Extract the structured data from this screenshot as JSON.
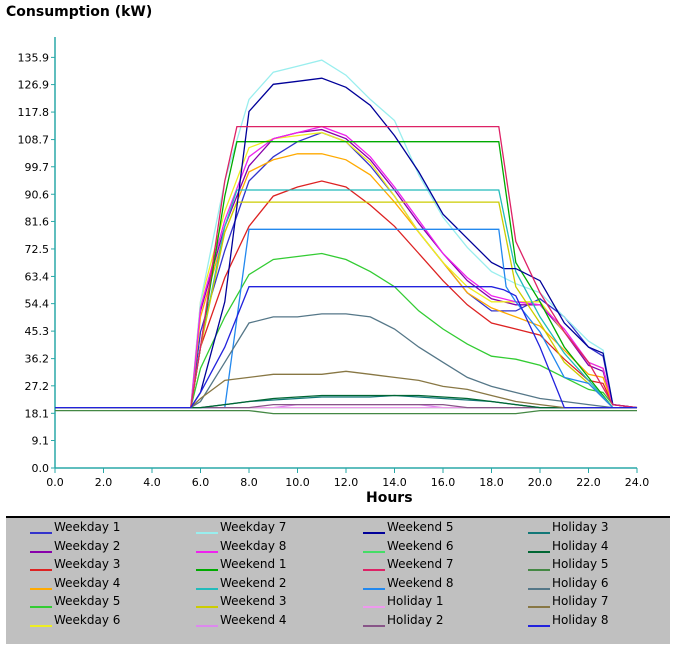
{
  "chart_data": {
    "type": "line",
    "title": "",
    "ylabel": "Consumption (kW)",
    "xlabel": "Hours",
    "xlim": [
      0,
      24
    ],
    "ylim": [
      0,
      140
    ],
    "x_ticks": [
      "0.0",
      "2.0",
      "4.0",
      "6.0",
      "8.0",
      "10.0",
      "12.0",
      "14.0",
      "16.0",
      "18.0",
      "20.0",
      "22.0",
      "24.0"
    ],
    "y_ticks": [
      "0.0",
      "9.1",
      "18.1",
      "27.2",
      "36.2",
      "45.3",
      "54.4",
      "63.4",
      "72.5",
      "81.6",
      "90.6",
      "99.7",
      "108.7",
      "117.8",
      "126.9",
      "135.9"
    ],
    "grid": false,
    "legend_position": "bottom",
    "series": [
      {
        "name": "Weekday 1",
        "color": "#3333cc",
        "x": [
          0,
          5.6,
          6,
          7,
          8,
          9,
          10,
          11,
          12,
          13,
          14,
          15,
          16,
          17,
          18,
          19,
          20,
          21,
          22,
          22.6,
          23,
          24
        ],
        "y": [
          20,
          20,
          45,
          72,
          95,
          103,
          108,
          111,
          108,
          100,
          90,
          78,
          68,
          58,
          52,
          52,
          56,
          50,
          40,
          37,
          21,
          20
        ]
      },
      {
        "name": "Weekday 2",
        "color": "#8800aa",
        "x": [
          0,
          5.6,
          6,
          7,
          8,
          9,
          10,
          11,
          12,
          13,
          14,
          15,
          16,
          17,
          18,
          19,
          20,
          21,
          22,
          22.6,
          23,
          24
        ],
        "y": [
          20,
          20,
          52,
          80,
          100,
          109,
          111,
          112,
          109,
          102,
          92,
          81,
          71,
          62,
          56,
          54,
          54,
          45,
          34,
          32,
          21,
          20
        ]
      },
      {
        "name": "Weekday 3",
        "color": "#dd2222",
        "x": [
          0,
          5.6,
          6,
          7,
          8,
          9,
          10,
          11,
          12,
          13,
          14,
          15,
          16,
          17,
          18,
          19,
          20,
          21,
          22,
          22.6,
          23,
          24
        ],
        "y": [
          20,
          20,
          40,
          63,
          80,
          90,
          93,
          95,
          93,
          87,
          80,
          71,
          62,
          54,
          48,
          46,
          44,
          36,
          29,
          28,
          21,
          20
        ]
      },
      {
        "name": "Weekday 4",
        "color": "#ffaa00",
        "x": [
          0,
          5.6,
          6,
          7,
          8,
          9,
          10,
          11,
          12,
          13,
          14,
          15,
          16,
          17,
          18,
          19,
          20,
          21,
          22,
          22.6,
          23,
          24
        ],
        "y": [
          20,
          20,
          50,
          78,
          98,
          102,
          104,
          104,
          102,
          97,
          88,
          78,
          68,
          58,
          53,
          50,
          47,
          39,
          31,
          30,
          21,
          20
        ]
      },
      {
        "name": "Weekday 5",
        "color": "#33cc33",
        "x": [
          0,
          5.6,
          6,
          7,
          8,
          9,
          10,
          11,
          12,
          13,
          14,
          15,
          16,
          17,
          18,
          19,
          20,
          21,
          22,
          22.6,
          23,
          24
        ],
        "y": [
          20,
          20,
          33,
          50,
          64,
          69,
          70,
          71,
          69,
          65,
          60,
          52,
          46,
          41,
          37,
          36,
          34,
          30,
          26,
          25,
          21,
          20
        ]
      },
      {
        "name": "Weekday 6",
        "color": "#eeee22",
        "x": [
          0,
          5.6,
          6,
          7,
          8,
          9,
          10,
          11,
          12,
          13,
          14,
          15,
          16,
          17,
          18,
          19,
          20,
          21,
          22,
          22.6,
          23,
          24
        ],
        "y": [
          20,
          20,
          55,
          85,
          106,
          109,
          110,
          111,
          108,
          101,
          90,
          78,
          68,
          60,
          55,
          55,
          55,
          45,
          35,
          33,
          21,
          20
        ]
      },
      {
        "name": "Weekday 7",
        "color": "#99eeee",
        "x": [
          0,
          5.6,
          6,
          7,
          8,
          9,
          10,
          11,
          12,
          13,
          14,
          15,
          16,
          17,
          18,
          19,
          20,
          21,
          22,
          22.6,
          23,
          24
        ],
        "y": [
          20,
          20,
          55,
          95,
          122,
          131,
          133,
          135,
          130,
          122,
          115,
          97,
          83,
          73,
          65,
          61,
          58,
          50,
          42,
          39,
          21,
          20
        ]
      },
      {
        "name": "Weekday 8",
        "color": "#ee22ee",
        "x": [
          0,
          5.6,
          6,
          7,
          8,
          9,
          10,
          11,
          12,
          13,
          14,
          15,
          16,
          17,
          18,
          19,
          20,
          21,
          22,
          22.6,
          23,
          24
        ],
        "y": [
          20,
          20,
          53,
          82,
          103,
          109,
          111,
          113,
          110,
          103,
          93,
          82,
          71,
          63,
          57,
          55,
          54,
          46,
          35,
          33,
          21,
          20
        ]
      },
      {
        "name": "Weekend 1",
        "color": "#00aa00",
        "x": [
          0,
          5.6,
          6,
          7,
          7.5,
          18.3,
          19,
          20,
          21,
          22,
          23,
          24
        ],
        "y": [
          20,
          20,
          40,
          90,
          108,
          108,
          68,
          55,
          40,
          30,
          20,
          20
        ]
      },
      {
        "name": "Weekend 2",
        "color": "#22bbbb",
        "x": [
          0,
          5.6,
          6,
          7,
          7.5,
          18.3,
          19,
          20,
          21,
          22,
          23,
          24
        ],
        "y": [
          20,
          20,
          40,
          80,
          92,
          92,
          65,
          50,
          38,
          29,
          20,
          20
        ]
      },
      {
        "name": "Weekend 3",
        "color": "#cccc00",
        "x": [
          0,
          5.6,
          6,
          7,
          7.5,
          18.3,
          19,
          20,
          21,
          22,
          23,
          24
        ],
        "y": [
          20,
          20,
          40,
          78,
          88,
          88,
          60,
          48,
          35,
          28,
          20,
          20
        ]
      },
      {
        "name": "Weekend 4",
        "color": "#dd88ee",
        "x": [
          0,
          5.6,
          6,
          7,
          8,
          9,
          10,
          11,
          12,
          13,
          14,
          15,
          16,
          17,
          18,
          19,
          20,
          21,
          22,
          23,
          24
        ],
        "y": [
          20,
          20,
          20,
          20,
          20,
          20,
          21,
          21,
          21,
          21,
          21,
          21,
          20,
          20,
          20,
          20,
          20,
          20,
          20,
          20,
          20
        ]
      },
      {
        "name": "Weekend 5",
        "color": "#000099",
        "x": [
          0,
          5.6,
          6,
          7,
          8,
          9,
          10,
          11,
          12,
          13,
          14,
          15,
          16,
          17,
          18,
          18.5,
          19,
          20,
          21,
          22,
          22.6,
          23,
          24
        ],
        "y": [
          20,
          20,
          25,
          55,
          118,
          127,
          128,
          129,
          126,
          120,
          110,
          98,
          84,
          76,
          68,
          66,
          66,
          62,
          48,
          40,
          38,
          21,
          20
        ]
      },
      {
        "name": "Weekend 6",
        "color": "#44dd66",
        "x": [
          0,
          7,
          8,
          19,
          20,
          21,
          22,
          23,
          24
        ],
        "y": [
          20,
          20,
          20,
          20,
          20,
          20,
          20,
          20,
          20
        ]
      },
      {
        "name": "Weekend 7",
        "color": "#dd2266",
        "x": [
          0,
          5.6,
          6,
          7,
          7.5,
          18.3,
          19,
          20,
          21,
          22,
          23,
          24
        ],
        "y": [
          20,
          20,
          40,
          95,
          113,
          113,
          75,
          58,
          45,
          35,
          21,
          20
        ]
      },
      {
        "name": "Weekend 8",
        "color": "#2288ee",
        "x": [
          0,
          5.6,
          6,
          7,
          8,
          18.3,
          18.6,
          19,
          20,
          21,
          22,
          23,
          24
        ],
        "y": [
          20,
          20,
          20,
          20,
          79,
          79,
          60,
          55,
          45,
          30,
          28,
          20,
          20
        ]
      },
      {
        "name": "Holiday 1",
        "color": "#ee99ee",
        "x": [
          0,
          6,
          8,
          10,
          12,
          14,
          16,
          18,
          20,
          22,
          24
        ],
        "y": [
          20,
          20,
          20,
          20,
          20,
          20,
          20,
          20,
          20,
          20,
          20
        ]
      },
      {
        "name": "Holiday 2",
        "color": "#885588",
        "x": [
          0,
          6,
          7,
          8,
          9,
          10,
          11,
          12,
          13,
          14,
          15,
          16,
          17,
          18,
          19,
          20,
          21,
          22,
          23,
          24
        ],
        "y": [
          20,
          20,
          20,
          20,
          21,
          21,
          21,
          21,
          21,
          21,
          21,
          21,
          20,
          20,
          20,
          20,
          20,
          20,
          20,
          20
        ]
      },
      {
        "name": "Holiday 3",
        "color": "#117777",
        "x": [
          0,
          6,
          7,
          8,
          9,
          10,
          11,
          12,
          13,
          14,
          15,
          16,
          17,
          18,
          19,
          20,
          21,
          22,
          23,
          24
        ],
        "y": [
          20,
          20,
          21,
          22,
          22.5,
          23,
          23.5,
          23.5,
          23.5,
          24,
          23.5,
          23,
          22.5,
          22,
          21,
          20,
          20,
          20,
          20,
          20
        ]
      },
      {
        "name": "Holiday 4",
        "color": "#006633",
        "x": [
          0,
          6,
          7,
          8,
          9,
          10,
          11,
          12,
          13,
          14,
          15,
          16,
          17,
          18,
          19,
          20,
          21,
          22,
          23,
          24
        ],
        "y": [
          20,
          20,
          21,
          22,
          23,
          23.5,
          24,
          24,
          24,
          24,
          24,
          23.5,
          23,
          22,
          21,
          20,
          20,
          20,
          20,
          20
        ]
      },
      {
        "name": "Holiday 5",
        "color": "#448844",
        "x": [
          0,
          6,
          8,
          9,
          10,
          11,
          12,
          13,
          14,
          15,
          16,
          17,
          18,
          19,
          20,
          21,
          22,
          23,
          24
        ],
        "y": [
          19,
          19,
          19,
          18,
          18,
          18,
          18,
          18,
          18,
          18,
          18,
          18,
          18,
          18,
          19,
          19,
          19,
          19,
          19
        ]
      },
      {
        "name": "Holiday 6",
        "color": "#557788",
        "x": [
          0,
          5.6,
          6,
          7,
          8,
          9,
          10,
          11,
          12,
          13,
          14,
          15,
          16,
          17,
          18,
          19,
          20,
          21,
          22,
          23,
          24
        ],
        "y": [
          20,
          20,
          22,
          35,
          48,
          50,
          50,
          51,
          51,
          50,
          46,
          40,
          35,
          30,
          27,
          25,
          23,
          22,
          21,
          20,
          20
        ]
      },
      {
        "name": "Holiday 7",
        "color": "#887744",
        "x": [
          0,
          5.6,
          6,
          7,
          8,
          9,
          10,
          11,
          12,
          13,
          14,
          15,
          16,
          17,
          18,
          19,
          20,
          21,
          22,
          23,
          24
        ],
        "y": [
          20,
          20,
          23,
          29,
          30,
          31,
          31,
          31,
          32,
          31,
          30,
          29,
          27,
          26,
          24,
          22,
          21,
          20,
          20,
          20,
          20
        ]
      },
      {
        "name": "Holiday 8",
        "color": "#2222dd",
        "x": [
          0,
          5.6,
          6,
          7,
          8,
          9,
          10,
          11,
          12,
          13,
          14,
          15,
          16,
          17,
          18,
          18.5,
          19,
          20,
          21,
          22,
          23,
          24
        ],
        "y": [
          20,
          20,
          25,
          40,
          60,
          60,
          60,
          60,
          60,
          60,
          60,
          60,
          60,
          60,
          60,
          59,
          57,
          40,
          20,
          20,
          20,
          20
        ]
      }
    ]
  }
}
